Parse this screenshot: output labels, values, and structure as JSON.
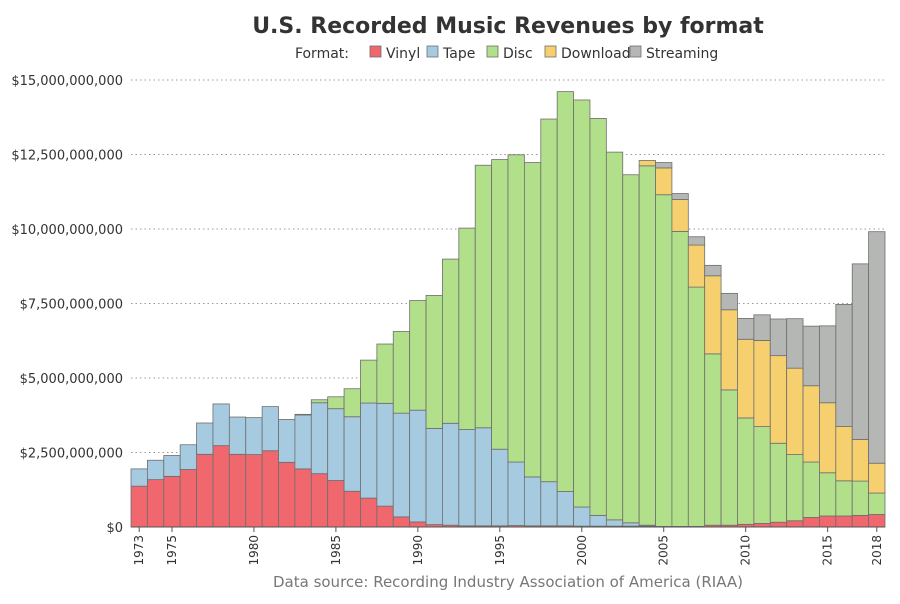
{
  "chart_data": {
    "type": "bar",
    "stacked": true,
    "title": "U.S. Recorded Music Revenues by format",
    "legend": {
      "label": "Format:",
      "placement": "top-center",
      "entries": [
        "Vinyl",
        "Tape",
        "Disc",
        "Download",
        "Streaming"
      ]
    },
    "source_note": "Data source: Recording Industry Association of America (RIAA)",
    "y_ticks": [
      0,
      2500000000,
      5000000000,
      7500000000,
      10000000000,
      12500000000,
      15000000000
    ],
    "y_tick_labels": [
      "$0",
      "$2,500,000,000",
      "$5,000,000,000",
      "$7,500,000,000",
      "$10,000,000,000",
      "$12,500,000,000",
      "$15,000,000,000"
    ],
    "ylim": [
      0,
      15000000000
    ],
    "x_ticks": [
      1973,
      1975,
      1980,
      1985,
      1990,
      1995,
      2000,
      2005,
      2010,
      2015,
      2018
    ],
    "x_tick_labels": [
      "1973",
      "1975",
      "1980",
      "1985",
      "1990",
      "1995",
      "2000",
      "2005",
      "2010",
      "2015",
      "2018"
    ],
    "xlim": [
      1973,
      2018
    ],
    "grid": "horizontal-dotted",
    "colors": {
      "Vinyl": "#f0676d",
      "Tape": "#a6cbe0",
      "Disc": "#b2df8a",
      "Download": "#f6d06e",
      "Streaming": "#b5b7b4"
    },
    "categories": [
      1973,
      1974,
      1975,
      1976,
      1977,
      1978,
      1979,
      1980,
      1981,
      1982,
      1983,
      1984,
      1985,
      1986,
      1987,
      1988,
      1989,
      1990,
      1991,
      1992,
      1993,
      1994,
      1995,
      1996,
      1997,
      1998,
      1999,
      2000,
      2001,
      2002,
      2003,
      2004,
      2005,
      2006,
      2007,
      2008,
      2009,
      2010,
      2011,
      2012,
      2013,
      2014,
      2015,
      2016,
      2017,
      2018
    ],
    "series": [
      {
        "name": "Vinyl",
        "values": [
          1370000000,
          1590000000,
          1700000000,
          1930000000,
          2440000000,
          2730000000,
          2440000000,
          2430000000,
          2560000000,
          2170000000,
          1950000000,
          1790000000,
          1560000000,
          1200000000,
          970000000,
          700000000,
          340000000,
          170000000,
          80000000,
          60000000,
          40000000,
          40000000,
          40000000,
          50000000,
          40000000,
          40000000,
          40000000,
          30000000,
          30000000,
          30000000,
          30000000,
          30000000,
          20000000,
          20000000,
          20000000,
          60000000,
          60000000,
          90000000,
          120000000,
          160000000,
          210000000,
          320000000,
          370000000,
          370000000,
          390000000,
          420000000
        ]
      },
      {
        "name": "Tape",
        "values": [
          580000000,
          650000000,
          700000000,
          830000000,
          1050000000,
          1400000000,
          1250000000,
          1240000000,
          1480000000,
          1440000000,
          1810000000,
          2380000000,
          2410000000,
          2500000000,
          3190000000,
          3450000000,
          3480000000,
          3750000000,
          3230000000,
          3420000000,
          3230000000,
          3290000000,
          2570000000,
          2130000000,
          1640000000,
          1480000000,
          1150000000,
          640000000,
          360000000,
          210000000,
          110000000,
          30000000,
          0,
          0,
          0,
          0,
          0,
          0,
          0,
          0,
          0,
          0,
          0,
          0,
          0,
          0
        ]
      },
      {
        "name": "Disc",
        "values": [
          0,
          0,
          0,
          0,
          0,
          0,
          0,
          0,
          0,
          0,
          20000000,
          100000000,
          400000000,
          940000000,
          1440000000,
          1990000000,
          2740000000,
          3680000000,
          4460000000,
          5510000000,
          6760000000,
          8810000000,
          9720000000,
          10310000000,
          10550000000,
          12170000000,
          13420000000,
          13660000000,
          13320000000,
          12340000000,
          11680000000,
          12060000000,
          11130000000,
          9900000000,
          8030000000,
          5750000000,
          4540000000,
          3570000000,
          3250000000,
          2650000000,
          2220000000,
          1860000000,
          1450000000,
          1180000000,
          1150000000,
          720000000
        ]
      },
      {
        "name": "Download",
        "values": [
          0,
          0,
          0,
          0,
          0,
          0,
          0,
          0,
          0,
          0,
          0,
          0,
          0,
          0,
          0,
          0,
          0,
          0,
          0,
          0,
          0,
          0,
          0,
          0,
          0,
          0,
          0,
          0,
          0,
          0,
          0,
          180000000,
          900000000,
          1070000000,
          1410000000,
          2620000000,
          2690000000,
          2640000000,
          2890000000,
          2940000000,
          2900000000,
          2560000000,
          2350000000,
          1820000000,
          1400000000,
          1000000000
        ]
      },
      {
        "name": "Streaming",
        "values": [
          0,
          0,
          0,
          0,
          0,
          0,
          0,
          0,
          0,
          0,
          0,
          0,
          0,
          0,
          0,
          0,
          0,
          0,
          0,
          0,
          0,
          0,
          0,
          0,
          0,
          0,
          0,
          0,
          0,
          0,
          0,
          0,
          180000000,
          200000000,
          280000000,
          350000000,
          550000000,
          700000000,
          860000000,
          1230000000,
          1660000000,
          2000000000,
          2580000000,
          4100000000,
          5890000000,
          7770000000
        ]
      }
    ]
  }
}
